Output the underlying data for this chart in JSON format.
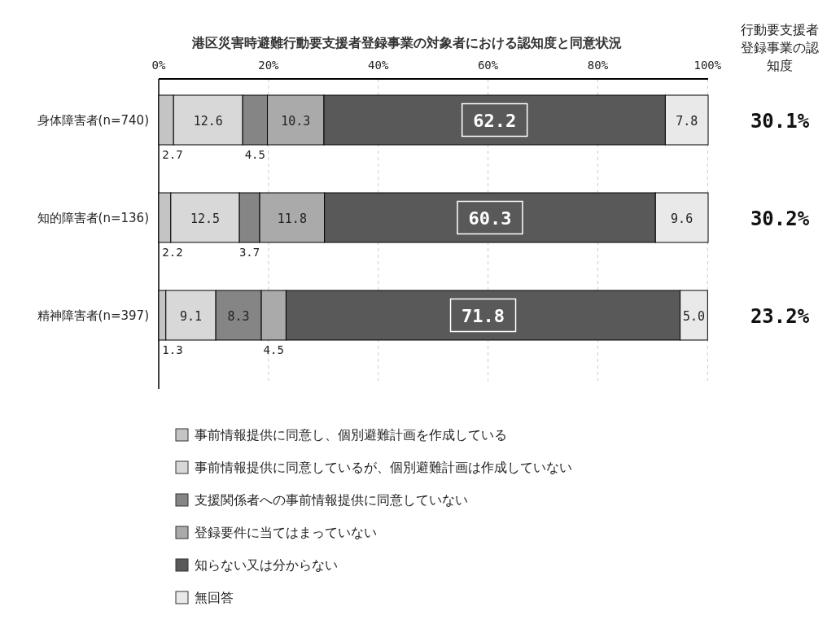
{
  "chart_data": {
    "type": "bar",
    "orientation": "horizontal",
    "stacked": true,
    "title": "港区災害時避難行動要支援者登録事業の対象者における認知度と同意状況",
    "categories": [
      "身体障害者(n=740)",
      "知的障害者(n=136)",
      "精神障害者(n=397)"
    ],
    "series": [
      {
        "name": "事前情報提供に同意し、個別避難計画を作成している",
        "color": "#c4c4c4",
        "values": [
          2.7,
          2.2,
          1.3
        ],
        "value_labels": [
          "2.7",
          "2.2",
          "1.3"
        ]
      },
      {
        "name": "事前情報提供に同意しているが、個別避難計画は作成していない",
        "color": "#d8d8d8",
        "values": [
          12.6,
          12.5,
          9.1
        ],
        "value_labels": [
          "12.6",
          "12.5",
          "9.1"
        ]
      },
      {
        "name": "支援関係者への事前情報提供に同意していない",
        "color": "#858585",
        "values": [
          4.5,
          3.7,
          8.3
        ],
        "value_labels": [
          "4.5",
          "3.7",
          "8.3"
        ]
      },
      {
        "name": "登録要件に当てはまっていない",
        "color": "#aaaaaa",
        "values": [
          10.3,
          11.8,
          4.5
        ],
        "value_labels": [
          "10.3",
          "11.8",
          "4.5"
        ]
      },
      {
        "name": "知らない又は分からない",
        "color": "#595959",
        "values": [
          62.2,
          60.3,
          71.8
        ],
        "value_labels": [
          "62.2",
          "60.3",
          "71.8"
        ]
      },
      {
        "name": "無回答",
        "color": "#e9e9e9",
        "values": [
          7.8,
          9.6,
          5.0
        ],
        "value_labels": [
          "7.8",
          "9.6",
          "5.0"
        ]
      }
    ],
    "xlim": [
      0,
      100.1
    ],
    "xticks": [
      {
        "value": 0,
        "label": "0%"
      },
      {
        "value": 20,
        "label": "20%"
      },
      {
        "value": 40,
        "label": "40%"
      },
      {
        "value": 60,
        "label": "60%"
      },
      {
        "value": 80,
        "label": "80%"
      },
      {
        "value": 100,
        "label": "100%"
      }
    ],
    "grid": "x",
    "legend": "bottom",
    "annotations": [
      "行動要支援者登録事業の認知度",
      "30.1%",
      "30.2%",
      "23.2%"
    ]
  }
}
